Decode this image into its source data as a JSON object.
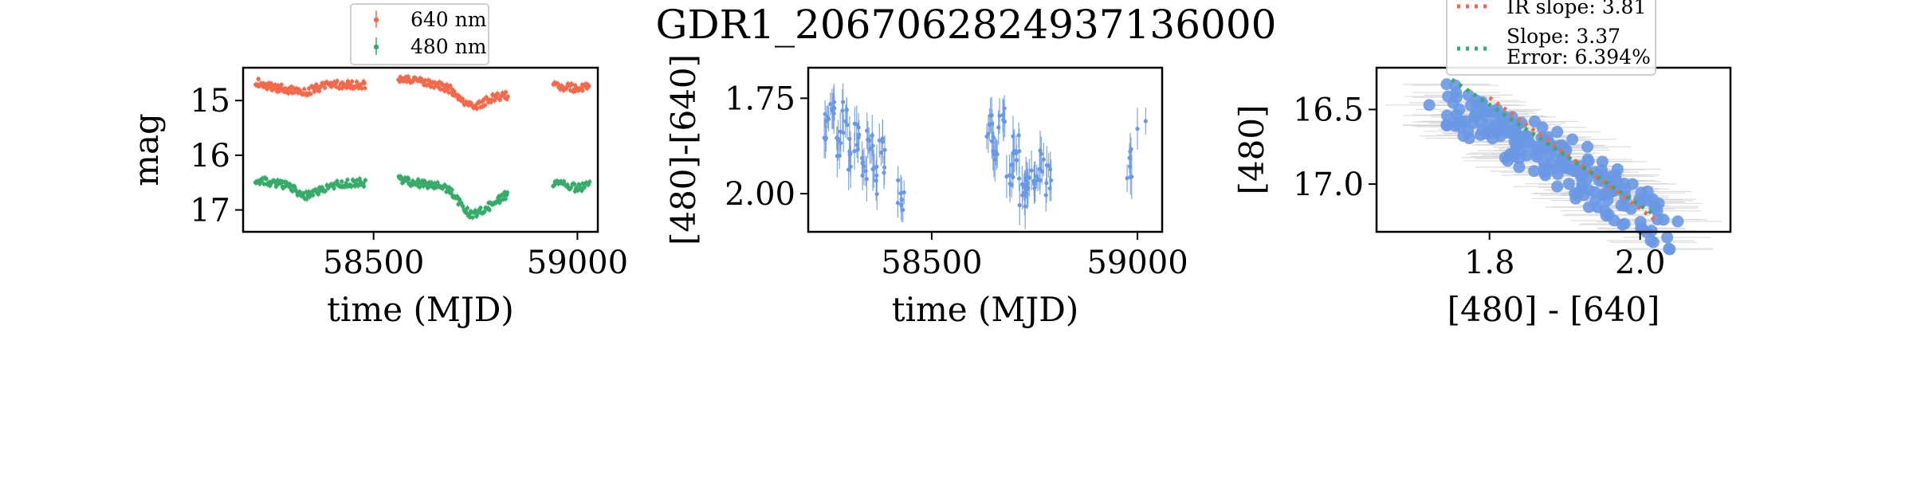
{
  "figure": {
    "title": "GDR1_2067062824937136000"
  },
  "chart_data": [
    {
      "type": "scatter",
      "xlabel": "time (MJD)",
      "ylabel": "mag",
      "xlim": [
        58180,
        59050
      ],
      "ylim": [
        17.4,
        14.4
      ],
      "y_inverted": true,
      "xticks": [
        58500,
        59000
      ],
      "yticks": [
        15,
        16,
        17
      ],
      "xtick_labels": [
        "58500",
        "59000"
      ],
      "ytick_labels": [
        "15",
        "16",
        "17"
      ],
      "legend": {
        "placement": "above-top-center",
        "entries": [
          "640 nm",
          "480 nm"
        ]
      },
      "series": [
        {
          "name": "640 nm",
          "color": "#f4694b",
          "segments": [
            {
              "x": [
                58210,
                58250,
                58290,
                58330,
                58370,
                58400,
                58450,
                58480
              ],
              "y": [
                14.65,
                14.75,
                14.8,
                14.85,
                14.75,
                14.7,
                14.72,
                14.72
              ]
            },
            {
              "x": [
                58560,
                58600,
                58650,
                58690,
                58720,
                58750,
                58790,
                58830
              ],
              "y": [
                14.6,
                14.63,
                14.7,
                14.8,
                15.05,
                15.12,
                14.95,
                14.9
              ]
            },
            {
              "x": [
                58940,
                58970,
                59000,
                59030
              ],
              "y": [
                14.72,
                14.75,
                14.78,
                14.75
              ]
            }
          ]
        },
        {
          "name": "480 nm",
          "color": "#36ab6a",
          "segments": [
            {
              "x": [
                58210,
                58250,
                58290,
                58330,
                58370,
                58400,
                58450,
                58480
              ],
              "y": [
                16.45,
                16.5,
                16.55,
                16.75,
                16.65,
                16.55,
                16.5,
                16.5
              ]
            },
            {
              "x": [
                58560,
                58600,
                58650,
                58690,
                58720,
                58740,
                58770,
                58800,
                58830
              ],
              "y": [
                16.45,
                16.5,
                16.55,
                16.65,
                16.95,
                17.1,
                17.0,
                16.85,
                16.7
              ]
            },
            {
              "x": [
                58940,
                58970,
                59000,
                59030
              ],
              "y": [
                16.5,
                16.55,
                16.6,
                16.55
              ]
            }
          ]
        }
      ]
    },
    {
      "type": "scatter",
      "xlabel": "time (MJD)",
      "ylabel": "[480]-[640]",
      "xlim": [
        58200,
        59060
      ],
      "ylim": [
        2.1,
        1.67
      ],
      "y_inverted": true,
      "xticks": [
        58500,
        59000
      ],
      "yticks": [
        1.75,
        2.0
      ],
      "xtick_labels": [
        "58500",
        "59000"
      ],
      "ytick_labels": [
        "1.75",
        "2.00"
      ],
      "series": [
        {
          "name": "",
          "color": "#6a98e4",
          "x": [
            58245,
            58260,
            58275,
            58290,
            58305,
            58320,
            58335,
            58350,
            58365,
            58380,
            58425,
            58640,
            58655,
            58670,
            58690,
            58705,
            58720,
            58735,
            58750,
            58765,
            58785,
            58980,
            59000,
            59020
          ],
          "y": [
            1.82,
            1.78,
            1.86,
            1.8,
            1.9,
            1.85,
            1.93,
            1.88,
            1.96,
            1.9,
            2.0,
            1.83,
            1.87,
            1.82,
            1.96,
            1.87,
            1.99,
            1.95,
            1.97,
            1.92,
            1.97,
            1.92,
            1.83,
            1.81
          ],
          "yerr": [
            0.05,
            0.05,
            0.05,
            0.05,
            0.05,
            0.05,
            0.05,
            0.05,
            0.05,
            0.05,
            0.05,
            0.05,
            0.05,
            0.05,
            0.05,
            0.05,
            0.05,
            0.05,
            0.05,
            0.05,
            0.05,
            0.05,
            0.05,
            0.05
          ]
        }
      ]
    },
    {
      "type": "scatter",
      "xlabel": "[480] - [640]",
      "ylabel": "[480]",
      "xlim": [
        1.65,
        2.12
      ],
      "ylim": [
        17.32,
        16.22
      ],
      "y_inverted": true,
      "xticks": [
        1.8,
        2.0
      ],
      "yticks": [
        16.5,
        17.0
      ],
      "xtick_labels": [
        "1.8",
        "2.0"
      ],
      "ytick_labels": [
        "16.5",
        "17.0"
      ],
      "legend": {
        "placement": "above-top-center",
        "entries": [
          {
            "label": "IR slope: 3.81",
            "color": "#f4694b"
          },
          {
            "label": "Slope: 3.37",
            "label2": "Error: 6.394%",
            "color": "#36ab6a"
          }
        ]
      },
      "series": [
        {
          "name": "",
          "color": "#6a98e4",
          "x": [
            1.72,
            1.76,
            1.78,
            1.8,
            1.82,
            1.84,
            1.85,
            1.87,
            1.88,
            1.9,
            1.92,
            1.94,
            1.95,
            1.96,
            1.98,
            2.0,
            2.02,
            2.05,
            1.83,
            1.86,
            1.89,
            1.91,
            1.93,
            1.97,
            1.99,
            1.79,
            1.81,
            1.95,
            2.01,
            1.87
          ],
          "y": [
            16.47,
            16.5,
            16.55,
            16.6,
            16.62,
            16.68,
            16.72,
            16.76,
            16.8,
            16.84,
            16.88,
            16.92,
            16.98,
            17.02,
            17.08,
            17.12,
            17.15,
            17.25,
            16.55,
            16.58,
            16.65,
            16.7,
            16.75,
            16.9,
            17.0,
            16.45,
            16.5,
            16.85,
            17.05,
            16.62
          ]
        },
        {
          "name": "IR slope: 3.81",
          "color": "#f4694b",
          "x": [
            1.8,
            2.02
          ],
          "y": [
            16.42,
            17.24
          ]
        },
        {
          "name": "Slope: 3.37",
          "color": "#36ab6a",
          "x": [
            1.75,
            2.02
          ],
          "y": [
            16.3,
            17.21
          ]
        }
      ]
    }
  ]
}
